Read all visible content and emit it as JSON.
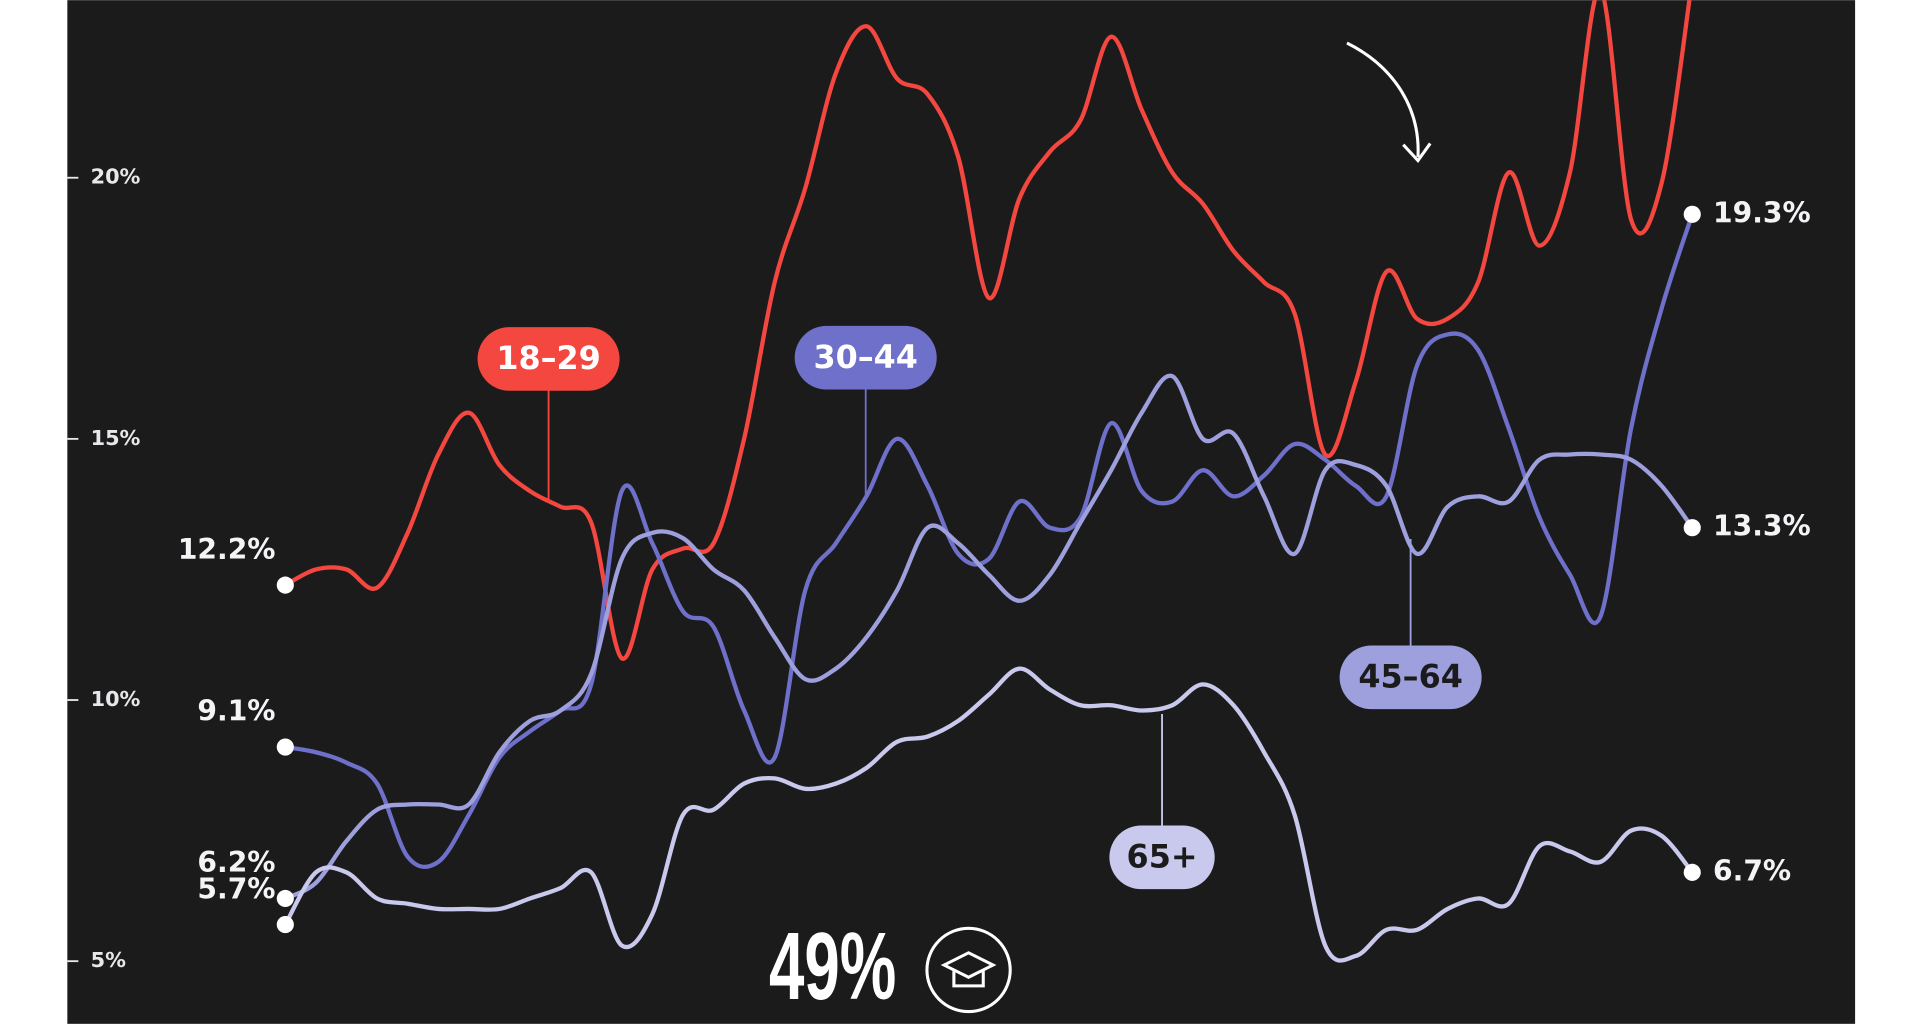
{
  "chart_data": {
    "type": "line",
    "annotation": "49%",
    "categories": [
      null,
      null,
      null,
      null,
      null,
      null,
      null,
      null,
      null,
      null,
      null,
      null,
      null,
      null,
      null,
      null,
      null,
      null,
      null,
      null,
      null,
      null,
      null,
      null,
      null,
      null,
      null,
      null,
      null,
      null,
      null,
      null,
      null,
      null,
      null,
      null,
      null,
      null,
      null,
      null,
      null,
      null,
      null,
      null,
      null,
      null,
      null
    ],
    "ylim": [
      3.8,
      23.4
    ],
    "yticks": [
      {
        "value": 5,
        "label": "5%"
      },
      {
        "value": 10,
        "label": "10%"
      },
      {
        "value": 15,
        "label": "15%"
      },
      {
        "value": 20,
        "label": "20%"
      }
    ],
    "series": [
      {
        "name": "18–29",
        "color": "#f4473f",
        "values": [
          12.2,
          12.5,
          12.5,
          12.15,
          13.2,
          14.7,
          15.5,
          14.5,
          14.0,
          13.7,
          13.4,
          10.8,
          12.5,
          12.9,
          13.0,
          15.0,
          18.0,
          19.8,
          22.0,
          22.9,
          21.9,
          21.6,
          20.4,
          17.7,
          19.6,
          20.5,
          21.1,
          22.7,
          21.3,
          20.1,
          19.5,
          18.6,
          18.0,
          17.4,
          14.7,
          16.1,
          18.2,
          17.3,
          17.3,
          18.0,
          20.1,
          18.7,
          20.1,
          23.6,
          19.2,
          19.9,
          23.8
        ],
        "value_labels": {
          "0": "12.2%"
        }
      },
      {
        "name": "30–44",
        "color": "#6e70c9",
        "values": [
          9.1,
          9.0,
          8.8,
          8.4,
          7.0,
          6.9,
          7.8,
          8.9,
          9.4,
          9.8,
          10.3,
          14.0,
          13.0,
          11.7,
          11.4,
          9.8,
          8.9,
          12.1,
          13.0,
          13.9,
          15.0,
          14.1,
          12.8,
          12.7,
          13.8,
          13.3,
          13.5,
          15.3,
          14.0,
          13.8,
          14.4,
          13.9,
          14.3,
          14.9,
          14.6,
          14.1,
          13.9,
          16.4,
          17.0,
          16.7,
          15.2,
          13.5,
          12.4,
          11.6,
          15.2,
          17.5,
          19.3
        ],
        "value_labels": {
          "0": "9.1%",
          "46": "19.3%"
        }
      },
      {
        "name": "45–64",
        "color": "#9ea0dd",
        "values": [
          6.2,
          6.5,
          7.3,
          7.9,
          8.0,
          8.0,
          8.0,
          9.0,
          9.6,
          9.8,
          10.5,
          12.7,
          13.2,
          13.1,
          12.5,
          12.1,
          11.2,
          10.4,
          10.6,
          11.2,
          12.1,
          13.3,
          13.0,
          12.4,
          11.9,
          12.4,
          13.4,
          14.4,
          15.5,
          16.2,
          15.0,
          15.1,
          13.9,
          12.8,
          14.4,
          14.5,
          14.1,
          12.8,
          13.7,
          13.9,
          13.8,
          14.6,
          14.7,
          14.7,
          14.6,
          14.1,
          13.3
        ],
        "value_labels": {
          "0": "6.2%",
          "46": "13.3%"
        }
      },
      {
        "name": "65+",
        "color": "#c8c9ec",
        "values": [
          5.7,
          6.7,
          6.7,
          6.2,
          6.1,
          6.0,
          6.0,
          6.0,
          6.2,
          6.4,
          6.7,
          5.3,
          5.9,
          7.8,
          7.9,
          8.4,
          8.5,
          8.3,
          8.4,
          8.7,
          9.2,
          9.3,
          9.6,
          10.1,
          10.6,
          10.2,
          9.9,
          9.9,
          9.8,
          9.9,
          10.3,
          9.9,
          9.0,
          7.8,
          5.3,
          5.1,
          5.6,
          5.6,
          6.0,
          6.2,
          6.1,
          7.2,
          7.1,
          6.9,
          7.5,
          7.4,
          6.7
        ],
        "value_labels": {
          "0": "5.7%",
          "46": "6.7%"
        }
      }
    ]
  }
}
